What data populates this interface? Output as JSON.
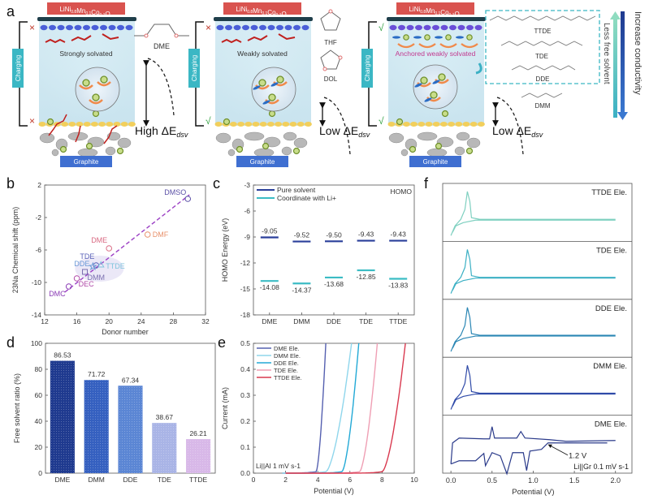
{
  "panel_labels": {
    "a": "a",
    "b": "b",
    "c": "c",
    "d": "d",
    "e": "e",
    "f": "f"
  },
  "panel_a": {
    "cathode_label": "LiNi0.8Mn0.1Co0.1O2",
    "anode_label": "Graphite",
    "charging_label": "Charging",
    "cells": [
      {
        "state": "Strongly solvated",
        "top_mark": "×",
        "bottom_mark": "×",
        "energy_label": "High ΔE",
        "energy_sub": "dsv",
        "molecule": "DME"
      },
      {
        "state": "Weakly solvated",
        "top_mark": "×",
        "bottom_mark": "√",
        "energy_label": "Low ΔE",
        "energy_sub": "dsv",
        "molecules": [
          "THF",
          "DOL"
        ]
      },
      {
        "state": "Anchored weakly solvated",
        "top_mark": "√",
        "bottom_mark": "√",
        "energy_label": "Low ΔE",
        "energy_sub": "dsv",
        "molecules": [
          "TTDE",
          "TDE",
          "DDE",
          "DMM"
        ]
      }
    ],
    "arrow_labels": {
      "left": "Less free solvent",
      "right": "Increase conductivity"
    },
    "colors": {
      "cathode": "#d9534f",
      "anode": "#3f6fd1",
      "charging": "#3bb7c4",
      "check": "#2e9e3e",
      "cross": "#c0392b",
      "anchored_text": "#c2398f"
    }
  },
  "chart_data": [
    {
      "id": "b",
      "type": "scatter",
      "title": "",
      "xlabel": "Donor number",
      "ylabel": "23Na Chemical shift (ppm)",
      "xlim": [
        12,
        32
      ],
      "ylim": [
        -14,
        2
      ],
      "xticks": [
        12,
        16,
        20,
        24,
        28,
        32
      ],
      "yticks": [
        2,
        -2,
        -6,
        -10,
        -14
      ],
      "points": [
        {
          "label": "DMSO",
          "x": 29.8,
          "y": 0.3,
          "marker": "circle",
          "color": "#5a4fa6"
        },
        {
          "label": "DMF",
          "x": 24.8,
          "y": -4.1,
          "marker": "circle",
          "color": "#e8916b"
        },
        {
          "label": "DME",
          "x": 20.0,
          "y": -5.8,
          "marker": "circle",
          "color": "#d96a83"
        },
        {
          "label": "TDE",
          "x": 18.4,
          "y": -7.9,
          "marker": "circle",
          "color": "#5a62b8"
        },
        {
          "label": "DDE",
          "x": 18.0,
          "y": -8.0,
          "marker": "star",
          "color": "#6a9ad6"
        },
        {
          "label": "TTDE",
          "x": 19.0,
          "y": -7.8,
          "marker": "triangle",
          "color": "#7fc4dc"
        },
        {
          "label": "DMM",
          "x": 17.0,
          "y": -8.7,
          "marker": "square",
          "color": "#7a6fb0"
        },
        {
          "label": "DEC",
          "x": 16.0,
          "y": -9.5,
          "marker": "circle",
          "color": "#b04aa8"
        },
        {
          "label": "DMC",
          "x": 15.0,
          "y": -10.5,
          "marker": "circle",
          "color": "#8a3bb5"
        }
      ],
      "fit_line": {
        "x": [
          14.5,
          30
        ],
        "y": [
          -11.2,
          0.8
        ],
        "style": "dashed",
        "color": "#9b3fc4"
      }
    },
    {
      "id": "c",
      "type": "bar",
      "subtype": "energy-levels",
      "xlabel": "",
      "ylabel": "HOMO Energy (eV)",
      "annotation": "HOMO",
      "ylim": [
        -18,
        -3
      ],
      "yticks": [
        -3,
        -6,
        -9,
        -12,
        -15,
        -18
      ],
      "categories": [
        "DME",
        "DMM",
        "DDE",
        "TDE",
        "TTDE"
      ],
      "series": [
        {
          "name": "Pure solvent",
          "color": "#2a3f9a",
          "values": [
            -9.05,
            -9.52,
            -9.5,
            -9.43,
            -9.43
          ],
          "labels": [
            "-9.05",
            "-9.52",
            "-9.50",
            "-9.43",
            "-9.43"
          ]
        },
        {
          "name": "Coordinate with Li+",
          "color": "#3bbcc4",
          "values": [
            -14.08,
            -14.37,
            -13.68,
            -12.85,
            -13.83
          ],
          "labels": [
            "-14.08",
            "-14.37",
            "-13.68",
            "-12.85",
            "-13.83"
          ]
        }
      ],
      "legend": {
        "position": "top-left",
        "entries": [
          "Pure solvent",
          "Coordinate with Li+"
        ]
      }
    },
    {
      "id": "d",
      "type": "bar",
      "xlabel": "",
      "ylabel": "Free solvent ratio (%)",
      "ylim": [
        0,
        100
      ],
      "yticks": [
        0,
        20,
        40,
        60,
        80,
        100
      ],
      "categories": [
        "DME",
        "DMM",
        "DDE",
        "TDE",
        "TTDE"
      ],
      "values": [
        86.53,
        71.72,
        67.34,
        38.67,
        26.21
      ],
      "labels": [
        "86.53",
        "71.72",
        "67.34",
        "38.67",
        "26.21"
      ],
      "colors": [
        "#1f3a8f",
        "#3560c0",
        "#5b86d4",
        "#a9b4e6",
        "#d8b8e8"
      ]
    },
    {
      "id": "e",
      "type": "line",
      "xlabel": "Potential (V)",
      "ylabel": "Current (mA)",
      "annotation": "Li||Al 1 mV s-1",
      "xlim": [
        0,
        10
      ],
      "ylim": [
        0,
        0.5
      ],
      "xticks": [
        0,
        2,
        4,
        6,
        8,
        10
      ],
      "yticks": [
        0.0,
        0.1,
        0.2,
        0.3,
        0.4,
        0.5
      ],
      "legend": {
        "position": "top-left"
      },
      "series": [
        {
          "name": "DME Ele.",
          "color": "#5560b0",
          "onset": 3.9,
          "end": 4.5,
          "start": 1.8
        },
        {
          "name": "DMM Ele.",
          "color": "#8fd6ec",
          "onset": 4.5,
          "end": 6.1,
          "start": 1.8
        },
        {
          "name": "DDE Ele.",
          "color": "#22a9d6",
          "onset": 5.5,
          "end": 6.55,
          "start": 2.0
        },
        {
          "name": "TDE Ele.",
          "color": "#ef9fb4",
          "onset": 6.6,
          "end": 7.7,
          "start": 2.0
        },
        {
          "name": "TTDE Ele.",
          "color": "#d9394f",
          "onset": 8.0,
          "end": 9.45,
          "start": 2.0
        }
      ]
    },
    {
      "id": "f",
      "type": "line",
      "subtype": "stacked-cv",
      "xlabel": "Potential (V)",
      "ylabel": "",
      "annotation": "Li||Gr 0.1 mV s-1",
      "callout": "1.2 V",
      "xlim": [
        -0.1,
        2.2
      ],
      "xticks": [
        0.0,
        0.5,
        1.0,
        1.5,
        2.0
      ],
      "panels": [
        {
          "name": "TTDE Ele.",
          "color": "#7fd0c0"
        },
        {
          "name": "TDE Ele.",
          "color": "#3bb0c4"
        },
        {
          "name": "DDE Ele.",
          "color": "#2a86b4"
        },
        {
          "name": "DMM Ele.",
          "color": "#2f4aa8"
        },
        {
          "name": "DME Ele.",
          "color": "#2a3a8a"
        }
      ]
    }
  ]
}
